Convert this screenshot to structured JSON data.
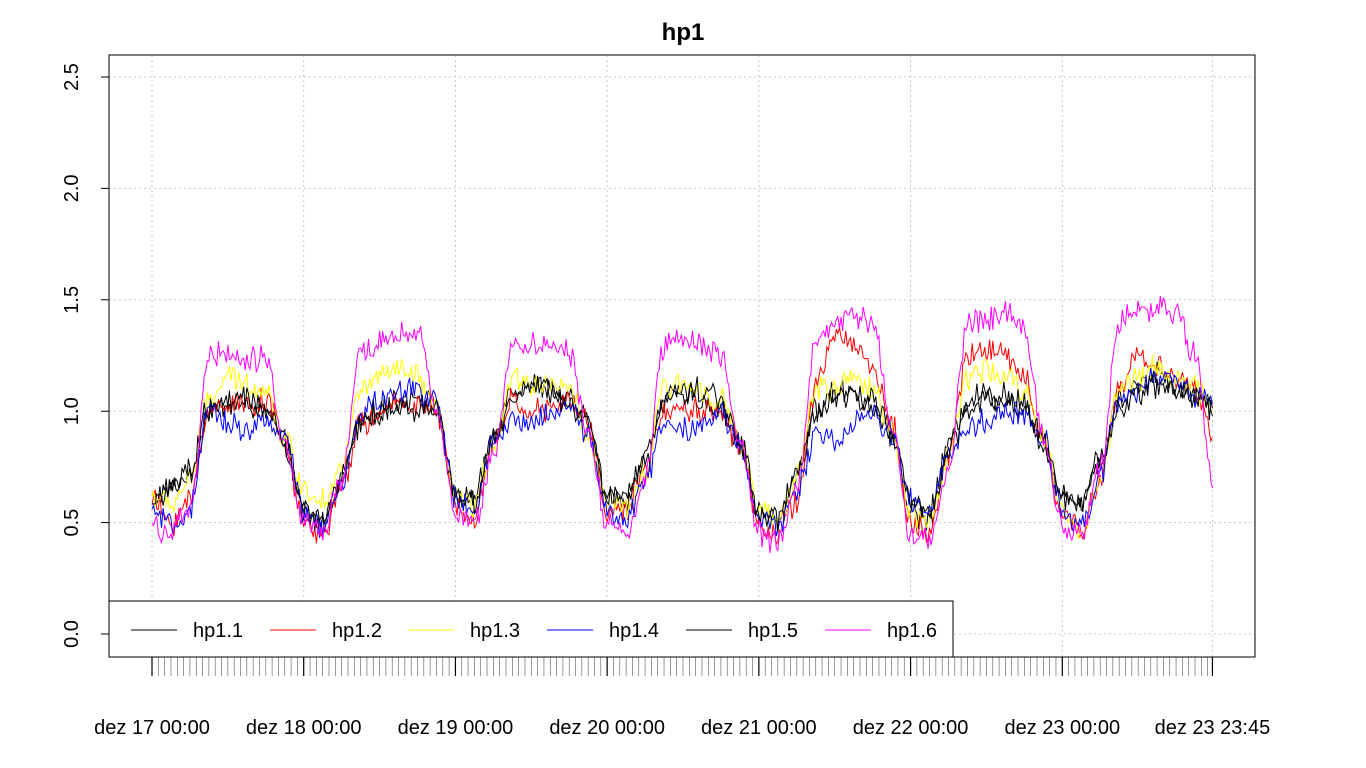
{
  "chart_data": {
    "type": "line",
    "title": "hp1",
    "xlabel": "",
    "ylabel": "",
    "ylim": [
      0.0,
      2.6
    ],
    "yticks": [
      0.0,
      0.5,
      1.0,
      1.5,
      2.0,
      2.5
    ],
    "ytick_labels": [
      "0.0",
      "0.5",
      "1.0",
      "1.5",
      "2.0",
      "2.5"
    ],
    "x_range": [
      "2023-12-17 00:00",
      "2023-12-23 23:45"
    ],
    "x_interval_minutes": 15,
    "xtick_labels": [
      "dez 17 00:00",
      "dez 18 00:00",
      "dez 19 00:00",
      "dez 20 00:00",
      "dez 21 00:00",
      "dez 22 00:00",
      "dez 23 00:00",
      "dez 23 23:45"
    ],
    "grid": true,
    "legend_position": "bottom-left",
    "hourly_x": [
      "17 00h",
      "17 03h",
      "17 06h",
      "17 09h",
      "17 12h",
      "17 15h",
      "17 18h",
      "17 21h",
      "18 00h",
      "18 03h",
      "18 06h",
      "18 09h",
      "18 12h",
      "18 15h",
      "18 18h",
      "18 21h",
      "19 00h",
      "19 03h",
      "19 06h",
      "19 09h",
      "19 12h",
      "19 15h",
      "19 18h",
      "19 21h",
      "20 00h",
      "20 03h",
      "20 06h",
      "20 09h",
      "20 12h",
      "20 15h",
      "20 18h",
      "20 21h",
      "21 00h",
      "21 03h",
      "21 06h",
      "21 09h",
      "21 12h",
      "21 15h",
      "21 18h",
      "21 21h",
      "22 00h",
      "22 03h",
      "22 06h",
      "22 09h",
      "22 12h",
      "22 15h",
      "22 18h",
      "22 21h",
      "23 00h",
      "23 03h",
      "23 06h",
      "23 09h",
      "23 12h",
      "23 15h",
      "23 18h",
      "23 21h",
      "23 23:45"
    ],
    "series": [
      {
        "name": "hp1.1",
        "color": "#000000",
        "values": [
          0.62,
          0.65,
          0.72,
          1.0,
          1.03,
          1.02,
          1.0,
          0.85,
          0.55,
          0.5,
          0.7,
          0.95,
          1.0,
          1.05,
          1.08,
          1.0,
          0.62,
          0.6,
          0.9,
          1.1,
          1.12,
          1.1,
          1.05,
          0.95,
          0.62,
          0.6,
          0.8,
          1.05,
          1.08,
          1.05,
          1.0,
          0.85,
          0.55,
          0.5,
          0.72,
          1.0,
          1.08,
          1.1,
          1.02,
          0.9,
          0.55,
          0.52,
          0.85,
          1.05,
          1.08,
          1.05,
          1.0,
          0.85,
          0.62,
          0.6,
          0.8,
          1.05,
          1.12,
          1.18,
          1.12,
          1.08,
          1.0
        ]
      },
      {
        "name": "hp1.2",
        "color": "#ff0000",
        "values": [
          0.6,
          0.5,
          0.6,
          1.0,
          1.04,
          1.03,
          1.05,
          0.85,
          0.5,
          0.45,
          0.65,
          0.95,
          0.97,
          1.05,
          1.03,
          1.0,
          0.58,
          0.52,
          0.85,
          1.05,
          1.0,
          1.0,
          1.05,
          0.95,
          0.55,
          0.55,
          0.75,
          1.0,
          1.02,
          1.0,
          1.0,
          0.85,
          0.5,
          0.45,
          0.6,
          1.1,
          1.35,
          1.3,
          1.2,
          0.95,
          0.5,
          0.45,
          0.8,
          1.25,
          1.28,
          1.25,
          1.15,
          0.85,
          0.55,
          0.45,
          0.7,
          1.1,
          1.25,
          1.2,
          1.15,
          1.1,
          0.9
        ]
      },
      {
        "name": "hp1.3",
        "color": "#ffff00",
        "values": [
          0.62,
          0.58,
          0.7,
          1.05,
          1.15,
          1.12,
          1.1,
          0.88,
          0.65,
          0.6,
          0.75,
          1.1,
          1.15,
          1.18,
          1.15,
          1.0,
          0.6,
          0.58,
          0.85,
          1.15,
          1.12,
          1.12,
          1.1,
          0.9,
          0.6,
          0.55,
          0.72,
          1.1,
          1.12,
          1.1,
          1.05,
          0.88,
          0.55,
          0.5,
          0.7,
          1.1,
          1.1,
          1.15,
          1.1,
          0.92,
          0.55,
          0.5,
          0.8,
          1.15,
          1.18,
          1.15,
          1.1,
          0.9,
          0.55,
          0.45,
          0.7,
          1.1,
          1.15,
          1.2,
          1.15,
          1.1,
          1.0
        ]
      },
      {
        "name": "hp1.4",
        "color": "#0000ff",
        "values": [
          0.55,
          0.48,
          0.55,
          1.0,
          0.95,
          0.92,
          0.95,
          0.88,
          0.55,
          0.48,
          0.65,
          1.0,
          1.05,
          1.08,
          1.1,
          1.05,
          0.6,
          0.55,
          0.85,
          0.95,
          0.95,
          1.0,
          1.02,
          0.9,
          0.55,
          0.5,
          0.7,
          0.95,
          0.92,
          0.95,
          0.98,
          0.85,
          0.52,
          0.48,
          0.65,
          0.9,
          0.85,
          0.95,
          0.98,
          0.9,
          0.6,
          0.55,
          0.8,
          0.92,
          0.95,
          1.0,
          0.98,
          0.88,
          0.55,
          0.5,
          0.7,
          1.05,
          1.1,
          1.15,
          1.12,
          1.08,
          1.02
        ]
      },
      {
        "name": "hp1.5",
        "color": "#000000",
        "values": [
          0.6,
          0.65,
          0.72,
          1.02,
          1.04,
          1.05,
          1.02,
          0.85,
          0.55,
          0.52,
          0.72,
          0.95,
          1.0,
          1.02,
          1.0,
          1.02,
          0.62,
          0.6,
          0.88,
          1.05,
          1.12,
          1.08,
          1.02,
          0.95,
          0.6,
          0.62,
          0.78,
          1.05,
          1.08,
          1.1,
          1.05,
          0.88,
          0.55,
          0.52,
          0.72,
          0.98,
          1.05,
          1.08,
          1.05,
          0.92,
          0.58,
          0.55,
          0.82,
          1.0,
          1.05,
          1.08,
          1.02,
          0.88,
          0.62,
          0.58,
          0.78,
          1.0,
          1.08,
          1.12,
          1.1,
          1.08,
          1.0
        ]
      },
      {
        "name": "hp1.6",
        "color": "#ff00ff",
        "values": [
          0.5,
          0.45,
          0.55,
          1.25,
          1.25,
          1.22,
          1.25,
          0.85,
          0.5,
          0.45,
          0.7,
          1.25,
          1.3,
          1.35,
          1.35,
          1.0,
          0.55,
          0.5,
          0.8,
          1.3,
          1.3,
          1.3,
          1.25,
          0.9,
          0.5,
          0.45,
          0.7,
          1.3,
          1.35,
          1.3,
          1.25,
          0.85,
          0.45,
          0.42,
          0.65,
          1.3,
          1.4,
          1.42,
          1.4,
          0.95,
          0.45,
          0.42,
          0.75,
          1.4,
          1.4,
          1.45,
          1.35,
          0.9,
          0.5,
          0.45,
          0.75,
          1.4,
          1.45,
          1.45,
          1.45,
          1.25,
          0.65
        ]
      }
    ]
  }
}
